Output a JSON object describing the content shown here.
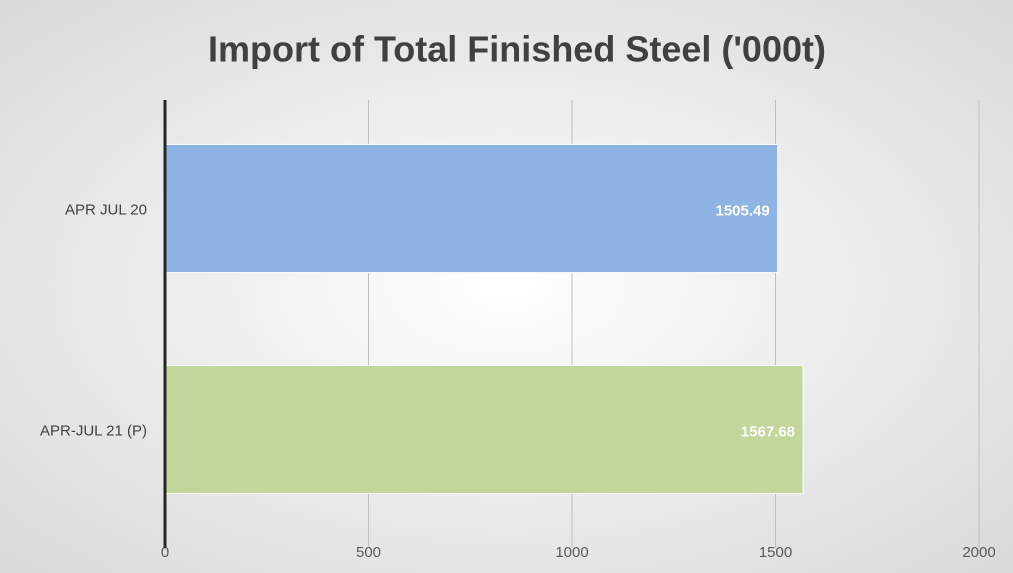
{
  "chart_data": {
    "type": "bar",
    "orientation": "horizontal",
    "title": "Import of Total Finished Steel ('000t)",
    "categories": [
      "APR JUL 20",
      "APR-JUL 21 (P)"
    ],
    "values": [
      1505.49,
      1567.68
    ],
    "colors": [
      "#8eb4e3",
      "#c3d69b"
    ],
    "xlim": [
      0,
      2000
    ],
    "xticks": [
      0,
      500,
      1000,
      1500,
      2000
    ],
    "grid": true
  }
}
